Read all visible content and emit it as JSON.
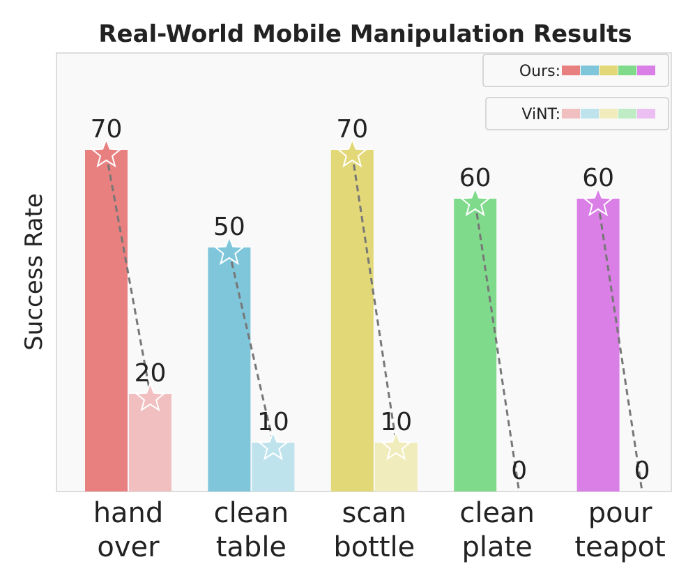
{
  "chart_data": {
    "type": "bar",
    "title": "Real-World Mobile Manipulation Results",
    "xlabel": "",
    "ylabel": "Success Rate",
    "ylim": [
      0,
      80
    ],
    "grid": false,
    "legend_position": "top-right",
    "categories": [
      [
        "hand",
        "over"
      ],
      [
        "clean",
        "table"
      ],
      [
        "scan",
        "bottle"
      ],
      [
        "clean",
        "plate"
      ],
      [
        "pour",
        "teapot"
      ]
    ],
    "series": [
      {
        "name": "Ours:",
        "values": [
          70,
          50,
          70,
          60,
          60
        ],
        "colors": [
          "#e88080",
          "#7fc6db",
          "#e2d878",
          "#80da8b",
          "#d97fe6"
        ]
      },
      {
        "name": "ViNT:",
        "values": [
          20,
          10,
          10,
          0,
          0
        ],
        "colors": [
          "#f2bfc0",
          "#bfe3ed",
          "#f1ecbc",
          "#bfecc5",
          "#ecbff2"
        ]
      }
    ],
    "connectors": "dashed gray line from each Ours bar top to the corresponding ViNT bar top",
    "markers": "star at top of each nonzero bar"
  }
}
